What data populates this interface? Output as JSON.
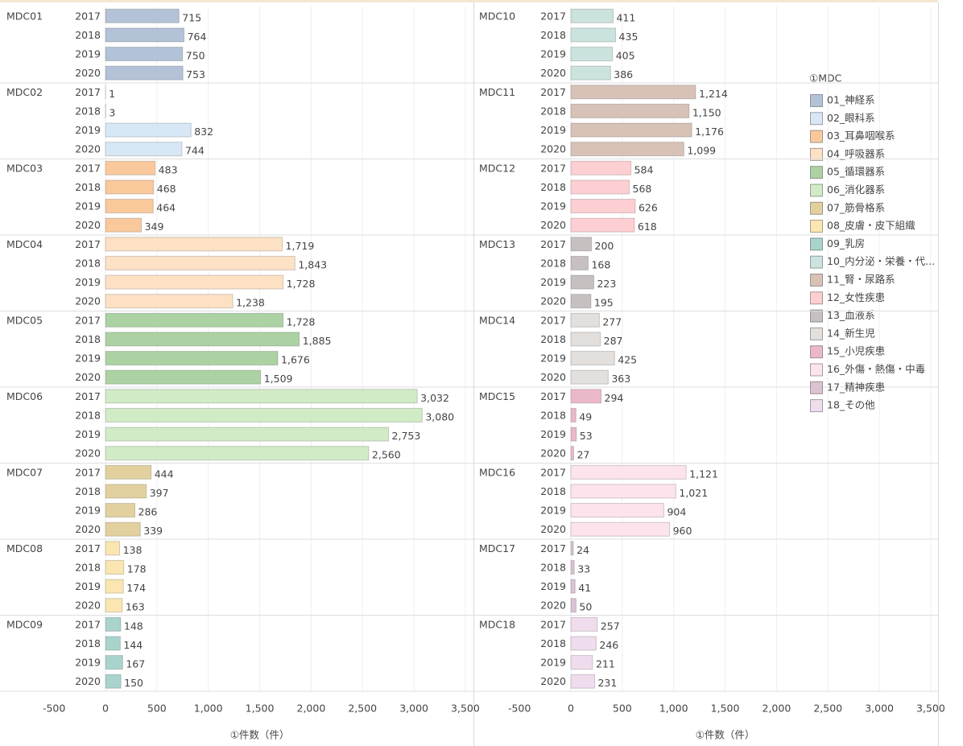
{
  "chart_data": {
    "type": "bar",
    "legend_title": "①MDC",
    "xlabel": "①件数（件）",
    "xlim": [
      -500,
      3500
    ],
    "xticks": [
      -500,
      0,
      500,
      {
        "value": 1000,
        "label": "1,000"
      },
      {
        "value": 1500,
        "label": "1,500"
      },
      {
        "value": 2000,
        "label": "2,000"
      },
      {
        "value": 2500,
        "label": "2,500"
      },
      {
        "value": 3000,
        "label": "3,000"
      },
      {
        "value": 3500,
        "label": "3,500"
      }
    ],
    "grid": true,
    "legend": "right",
    "categories": [
      "2017",
      "2018",
      "2019",
      "2020"
    ],
    "series": [
      {
        "group": "MDC01",
        "name": "01_神経系",
        "color": "#b4c2d8",
        "values": [
          715,
          764,
          750,
          753
        ]
      },
      {
        "group": "MDC02",
        "name": "02_眼科系",
        "color": "#d8e7f5",
        "values": [
          1,
          3,
          832,
          744
        ]
      },
      {
        "group": "MDC03",
        "name": "03_耳鼻咽喉系",
        "color": "#f9c99c",
        "values": [
          483,
          468,
          464,
          349
        ]
      },
      {
        "group": "MDC04",
        "name": "04_呼吸器系",
        "color": "#fde1c5",
        "values": [
          1719,
          1843,
          1728,
          1238
        ],
        "value_labels": [
          "1,719",
          "1,843",
          "1,728",
          "1,238"
        ]
      },
      {
        "group": "MDC05",
        "name": "05_循環器系",
        "color": "#acd2a4",
        "values": [
          1728,
          1885,
          1676,
          1509
        ],
        "value_labels": [
          "1,728",
          "1,885",
          "1,676",
          "1,509"
        ]
      },
      {
        "group": "MDC06",
        "name": "06_消化器系",
        "color": "#d1ebc6",
        "values": [
          3032,
          3080,
          2753,
          2560
        ],
        "value_labels": [
          "3,032",
          "3,080",
          "2,753",
          "2,560"
        ]
      },
      {
        "group": "MDC07",
        "name": "07_筋骨格系",
        "color": "#e2d19f",
        "values": [
          444,
          397,
          286,
          339
        ]
      },
      {
        "group": "MDC08",
        "name": "08_皮膚・皮下組織",
        "color": "#fbe5b0",
        "values": [
          138,
          178,
          174,
          163
        ]
      },
      {
        "group": "MDC09",
        "name": "09_乳房",
        "color": "#a9d3cd",
        "values": [
          148,
          144,
          167,
          150
        ]
      },
      {
        "group": "MDC10",
        "name": "10_内分泌・栄養・代...",
        "color": "#cbe3df",
        "values": [
          411,
          435,
          405,
          386
        ]
      },
      {
        "group": "MDC11",
        "name": "11_腎・尿路系",
        "color": "#d8c1b6",
        "values": [
          1214,
          1150,
          1176,
          1099
        ],
        "value_labels": [
          "1,214",
          "1,150",
          "1,176",
          "1,099"
        ]
      },
      {
        "group": "MDC12",
        "name": "12_女性疾患",
        "color": "#fdcfd2",
        "values": [
          584,
          568,
          626,
          618
        ]
      },
      {
        "group": "MDC13",
        "name": "13_血液系",
        "color": "#c7c0c1",
        "values": [
          200,
          168,
          223,
          195
        ]
      },
      {
        "group": "MDC14",
        "name": "14_新生児",
        "color": "#e2dfdd",
        "values": [
          277,
          287,
          425,
          363
        ]
      },
      {
        "group": "MDC15",
        "name": "15_小児疾患",
        "color": "#ebb8ca",
        "values": [
          294,
          49,
          53,
          27
        ]
      },
      {
        "group": "MDC16",
        "name": "16_外傷・熱傷・中毒",
        "color": "#fde3ec",
        "values": [
          1121,
          1021,
          904,
          960
        ],
        "value_labels": [
          "1,121",
          "1,021",
          "904",
          "960"
        ]
      },
      {
        "group": "MDC17",
        "name": "17_精神疾患",
        "color": "#dbc2d4",
        "values": [
          24,
          33,
          41,
          50
        ]
      },
      {
        "group": "MDC18",
        "name": "18_その他",
        "color": "#efdded",
        "values": [
          257,
          246,
          211,
          231
        ]
      }
    ]
  }
}
